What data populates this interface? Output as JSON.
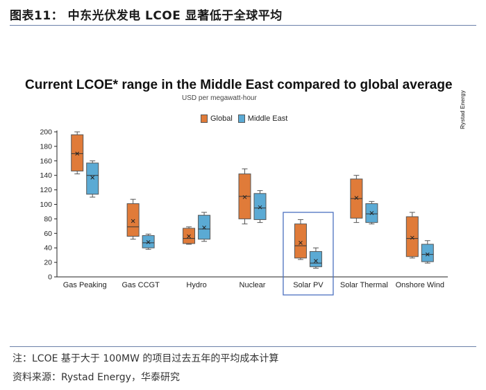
{
  "page": {
    "figure_title": "图表11： 中东光伏发电 LCOE 显著低于全球平均",
    "note": "注：LCOE 基于大于 100MW 的项目过去五年的平均成本计算",
    "source": "资料来源：Rystad Energy，华泰研究"
  },
  "colors": {
    "global": "#E07B39",
    "middle_east": "#5BAAD4",
    "highlight": "#4A6FBF",
    "rule": "#6A7FA8"
  },
  "chart_data": {
    "type": "box",
    "title": "Current LCOE* range in the Middle East compared to global average",
    "subtitle": "USD per megawatt-hour",
    "brand": "Rystad Energy",
    "ylim": [
      0,
      200
    ],
    "yticks": [
      0,
      20,
      40,
      60,
      80,
      100,
      120,
      140,
      160,
      180,
      200
    ],
    "legend": [
      "Global",
      "Middle East"
    ],
    "highlighted_category": "Solar PV",
    "categories": [
      "Gas Peaking",
      "Gas CCGT",
      "Hydro",
      "Nuclear",
      "Solar PV",
      "Solar Thermal",
      "Onshore Wind"
    ],
    "series": [
      {
        "name": "Global",
        "boxes": [
          {
            "min": 142,
            "q1": 146,
            "median": 170,
            "q3": 196,
            "max": 200,
            "mean": 170
          },
          {
            "min": 52,
            "q1": 56,
            "median": 69,
            "q3": 101,
            "max": 107,
            "mean": 77
          },
          {
            "min": 45,
            "q1": 46,
            "median": 53,
            "q3": 67,
            "max": 69,
            "mean": 56
          },
          {
            "min": 73,
            "q1": 80,
            "median": 111,
            "q3": 142,
            "max": 149,
            "mean": 110
          },
          {
            "min": 24,
            "q1": 26,
            "median": 43,
            "q3": 73,
            "max": 79,
            "mean": 47
          },
          {
            "min": 75,
            "q1": 81,
            "median": 108,
            "q3": 135,
            "max": 140,
            "mean": 109
          },
          {
            "min": 26,
            "q1": 28,
            "median": 53,
            "q3": 83,
            "max": 89,
            "mean": 54
          }
        ]
      },
      {
        "name": "Middle East",
        "boxes": [
          {
            "min": 110,
            "q1": 114,
            "median": 140,
            "q3": 157,
            "max": 160,
            "mean": 137
          },
          {
            "min": 38,
            "q1": 40,
            "median": 47,
            "q3": 57,
            "max": 59,
            "mean": 48
          },
          {
            "min": 49,
            "q1": 52,
            "median": 66,
            "q3": 85,
            "max": 89,
            "mean": 68
          },
          {
            "min": 75,
            "q1": 79,
            "median": 95,
            "q3": 115,
            "max": 119,
            "mean": 96
          },
          {
            "min": 12,
            "q1": 14,
            "median": 19,
            "q3": 35,
            "max": 40,
            "mean": 22
          },
          {
            "min": 73,
            "q1": 75,
            "median": 87,
            "q3": 101,
            "max": 104,
            "mean": 88
          },
          {
            "min": 19,
            "q1": 21,
            "median": 31,
            "q3": 45,
            "max": 50,
            "mean": 31
          }
        ]
      }
    ]
  }
}
